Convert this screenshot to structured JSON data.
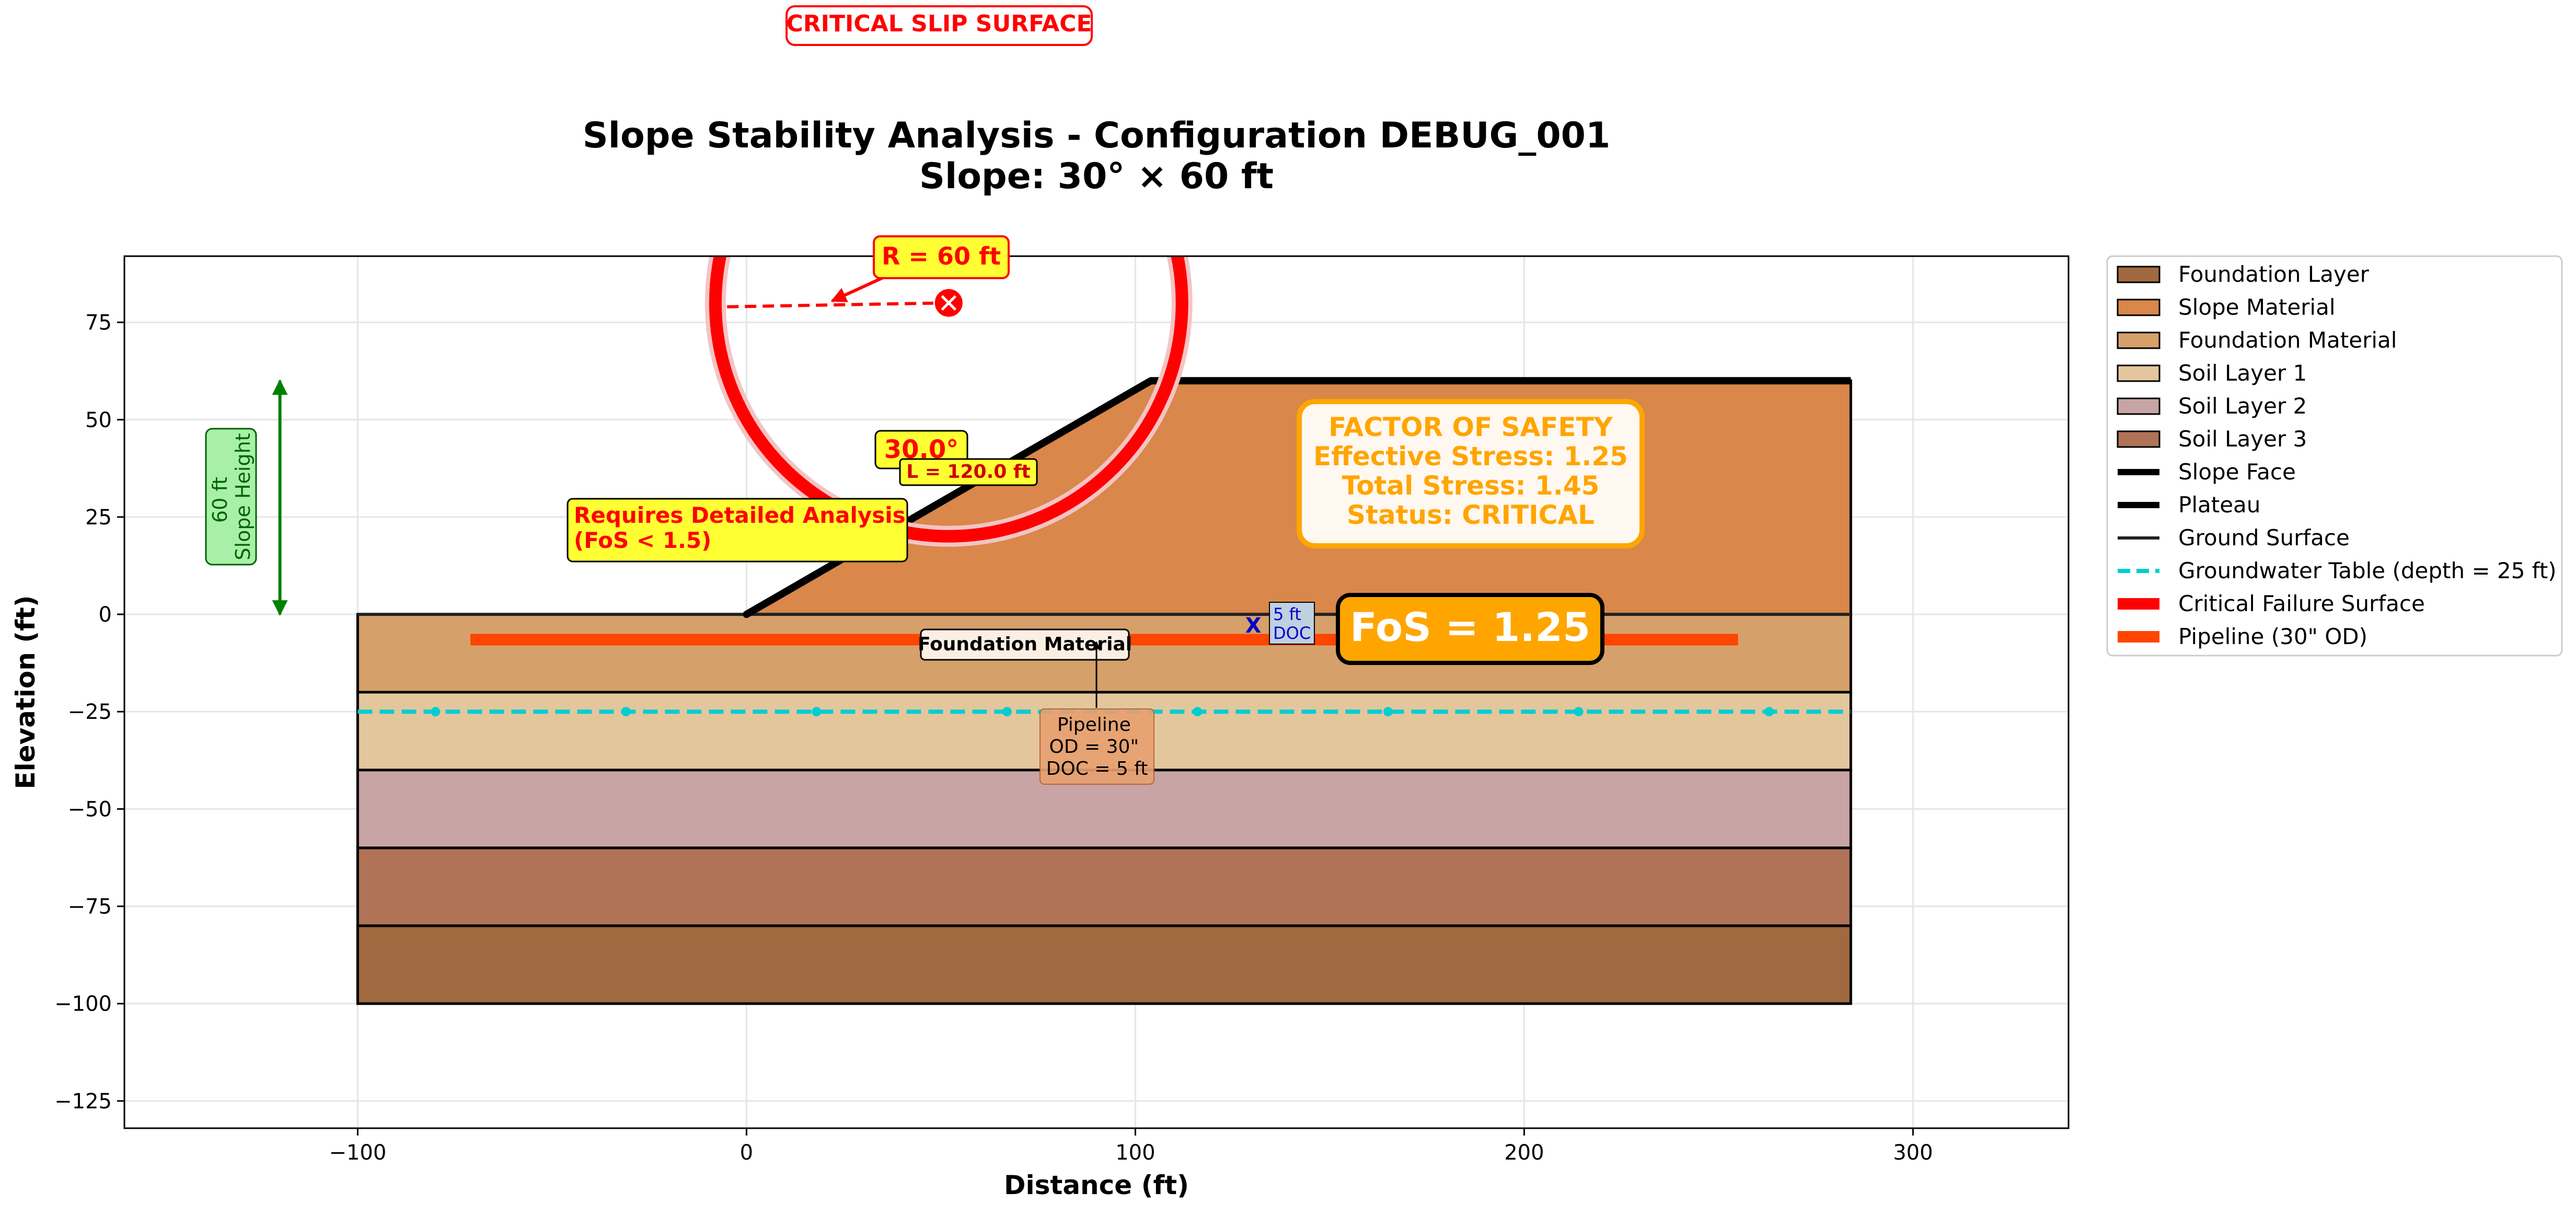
{
  "header": {
    "badge": "CRITICAL SLIP SURFACE",
    "title_line1": "Slope Stability Analysis - Configuration DEBUG_001",
    "title_line2": "Slope: 30° × 60 ft"
  },
  "colors": {
    "foundation_layer": "#A0693F",
    "slope_material": "#D9874A",
    "foundation_material": "#D6A06A",
    "soil_layer_1": "#E4C69D",
    "soil_layer_2": "#C8A4A4",
    "soil_layer_3": "#B07358",
    "critical": "#FF0000",
    "pipeline": "#FF4500",
    "groundwater": "#00CED1",
    "fos_box": "#FFA500",
    "dimension": "#008000",
    "annotation_yellow": "#FFFF33",
    "grid": "#E6E6E6"
  },
  "chart_data": {
    "type": "area",
    "xlabel": "Distance (ft)",
    "ylabel": "Elevation (ft)",
    "xlim": [
      -160,
      340
    ],
    "ylim": [
      -132,
      92
    ],
    "xticks": [
      -100,
      0,
      100,
      200,
      300
    ],
    "yticks": [
      75,
      50,
      25,
      0,
      -25,
      -50,
      -75,
      -100,
      -125
    ],
    "xtick_labels": [
      "−100",
      "0",
      "100",
      "200",
      "300"
    ],
    "ytick_labels": [
      "75",
      "50",
      "25",
      "0",
      "−25",
      "−50",
      "−75",
      "−100",
      "−125"
    ],
    "grid": true,
    "legend_position": "outside-right",
    "layers": [
      {
        "key": "soil_layer_1",
        "x": [
          -100,
          284
        ],
        "top": -20,
        "bottom": -40
      },
      {
        "key": "soil_layer_2",
        "x": [
          -100,
          284
        ],
        "top": -40,
        "bottom": -60
      },
      {
        "key": "soil_layer_3",
        "x": [
          -100,
          284
        ],
        "top": -60,
        "bottom": -80
      },
      {
        "key": "foundation_layer",
        "x": [
          -100,
          284
        ],
        "top": -80,
        "bottom": -100
      },
      {
        "key": "foundation_material",
        "x": [
          -100,
          284
        ],
        "top": 0,
        "bottom": -20
      }
    ],
    "slope_body": [
      [
        0,
        0
      ],
      [
        104,
        60
      ],
      [
        284,
        60
      ],
      [
        284,
        0
      ]
    ],
    "slope_face": [
      [
        0,
        0
      ],
      [
        104,
        60
      ]
    ],
    "plateau": [
      [
        104,
        60
      ],
      [
        284,
        60
      ]
    ],
    "ground_surface": [
      [
        -100,
        0
      ],
      [
        284,
        0
      ]
    ],
    "groundwater_table": {
      "y": -25,
      "x": [
        -100,
        284
      ],
      "markers": [
        -80,
        -31,
        18,
        67,
        116,
        165,
        214,
        263
      ]
    },
    "pipeline": {
      "y": -6.5,
      "x": [
        -71,
        255
      ]
    },
    "critical_circle": {
      "center": [
        52,
        80
      ],
      "radius": 60
    },
    "radius_line": [
      [
        -5,
        79
      ],
      [
        52,
        80
      ]
    ],
    "dimension_arrow": {
      "x": -120,
      "y": [
        0,
        60
      ]
    },
    "doc_marker": [
      132,
      -2.5
    ]
  },
  "annotations": {
    "radius": "R = 60 ft",
    "angle": "30.0°",
    "length": "L = 120.0 ft",
    "detailed_line1": "Requires Detailed Analysis",
    "detailed_line2": "(FoS < 1.5)",
    "height_line1": "60 ft",
    "height_line2": "Slope Height",
    "fos_title": "FACTOR OF SAFETY",
    "effective": "Effective Stress: 1.25",
    "total": "Total Stress: 1.45",
    "status": "Status: CRITICAL",
    "fos_big": "FoS = 1.25",
    "doc_line1": "5 ft",
    "doc_line2": "DOC",
    "x_mark": "X",
    "found_label": "Foundation Material",
    "pipe_line1": "Pipeline",
    "pipe_line2": "OD = 30\"",
    "pipe_line3": "DOC = 5 ft"
  },
  "legend": {
    "items": [
      {
        "label": "Foundation Layer",
        "kind": "patch",
        "color": "#A0693F"
      },
      {
        "label": "Slope Material",
        "kind": "patch",
        "color": "#D9874A"
      },
      {
        "label": "Foundation Material",
        "kind": "patch",
        "color": "#D6A06A"
      },
      {
        "label": "Soil Layer 1",
        "kind": "patch",
        "color": "#E4C69D"
      },
      {
        "label": "Soil Layer 2",
        "kind": "patch",
        "color": "#C8A4A4"
      },
      {
        "label": "Soil Layer 3",
        "kind": "patch",
        "color": "#B07358"
      },
      {
        "label": "Slope Face",
        "kind": "line",
        "color": "#000000",
        "width": 12
      },
      {
        "label": "Plateau",
        "kind": "line",
        "color": "#000000",
        "width": 12
      },
      {
        "label": "Ground Surface",
        "kind": "line",
        "color": "#222222",
        "width": 6
      },
      {
        "label": "Groundwater Table (depth = 25 ft)",
        "kind": "dash",
        "color": "#00CED1",
        "width": 8
      },
      {
        "label": "Critical Failure Surface",
        "kind": "line",
        "color": "#FF0000",
        "width": 22
      },
      {
        "label": "Pipeline (30\" OD)",
        "kind": "line",
        "color": "#FF4500",
        "width": 22
      }
    ]
  }
}
